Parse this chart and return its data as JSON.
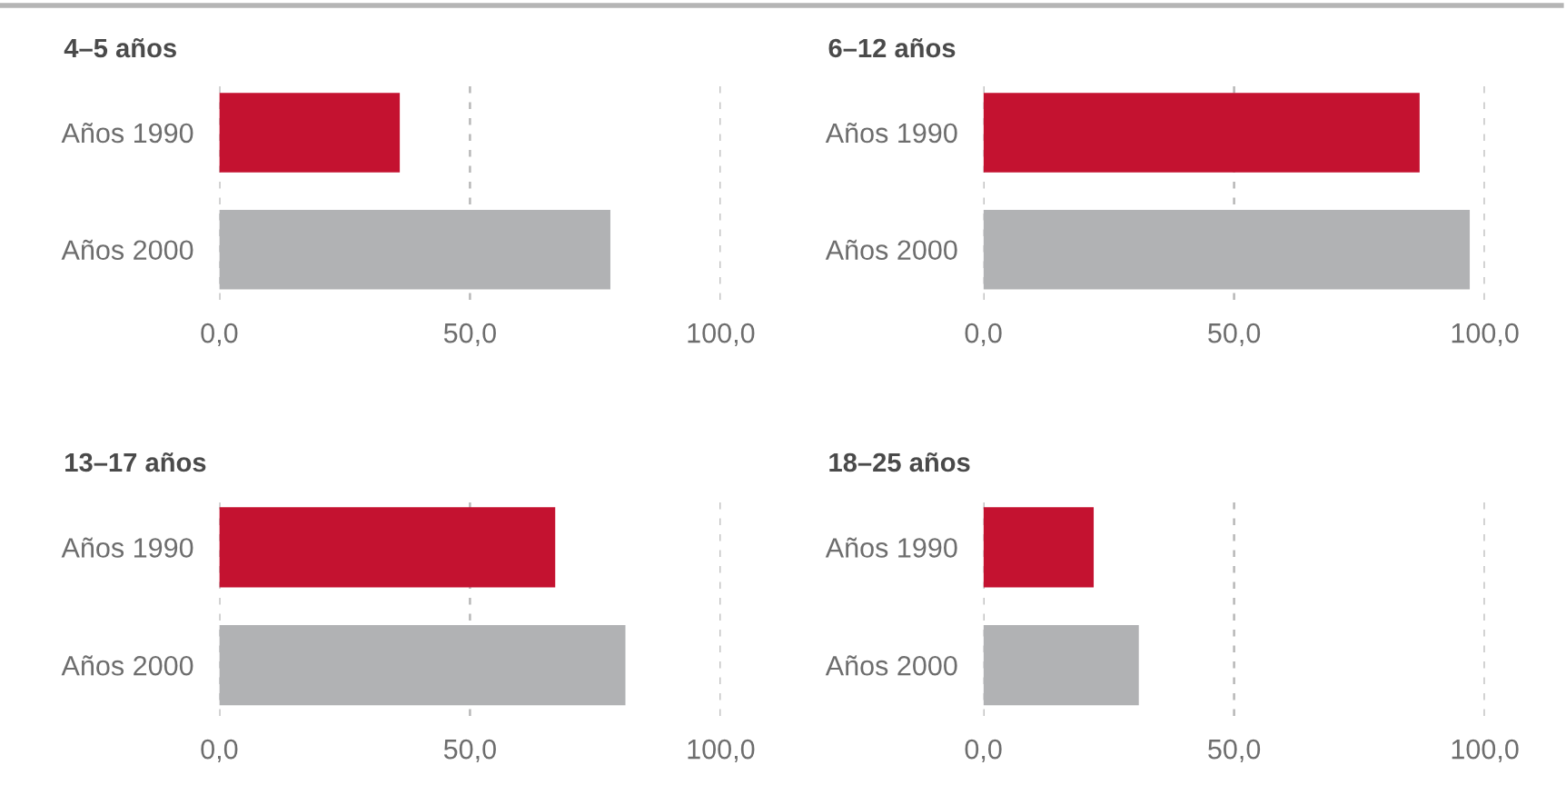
{
  "chart_data": [
    {
      "type": "bar",
      "orientation": "horizontal",
      "title": "4–5 años",
      "categories": [
        "Años 1990",
        "Años 2000"
      ],
      "values": [
        36,
        78
      ],
      "colors": [
        "#c41230",
        "#b1b2b4"
      ],
      "xlim": [
        0,
        100
      ],
      "xticks": [
        {
          "value": 0,
          "label": "0,0"
        },
        {
          "value": 50,
          "label": "50,0"
        },
        {
          "value": 100,
          "label": "100,0"
        }
      ],
      "grid": "x"
    },
    {
      "type": "bar",
      "orientation": "horizontal",
      "title": "6–12 años",
      "categories": [
        "Años 1990",
        "Años 2000"
      ],
      "values": [
        87,
        97
      ],
      "colors": [
        "#c41230",
        "#b1b2b4"
      ],
      "xlim": [
        0,
        100
      ],
      "xticks": [
        {
          "value": 0,
          "label": "0,0"
        },
        {
          "value": 50,
          "label": "50,0"
        },
        {
          "value": 100,
          "label": "100,0"
        }
      ],
      "grid": "x"
    },
    {
      "type": "bar",
      "orientation": "horizontal",
      "title": "13–17 años",
      "categories": [
        "Años 1990",
        "Años 2000"
      ],
      "values": [
        67,
        81
      ],
      "colors": [
        "#c41230",
        "#b1b2b4"
      ],
      "xlim": [
        0,
        100
      ],
      "xticks": [
        {
          "value": 0,
          "label": "0,0"
        },
        {
          "value": 50,
          "label": "50,0"
        },
        {
          "value": 100,
          "label": "100,0"
        }
      ],
      "grid": "x"
    },
    {
      "type": "bar",
      "orientation": "horizontal",
      "title": "18–25 años",
      "categories": [
        "Años 1990",
        "Años 2000"
      ],
      "values": [
        22,
        31
      ],
      "colors": [
        "#c41230",
        "#b1b2b4"
      ],
      "xlim": [
        0,
        100
      ],
      "xticks": [
        {
          "value": 0,
          "label": "0,0"
        },
        {
          "value": 50,
          "label": "50,0"
        },
        {
          "value": 100,
          "label": "100,0"
        }
      ],
      "grid": "x"
    }
  ]
}
